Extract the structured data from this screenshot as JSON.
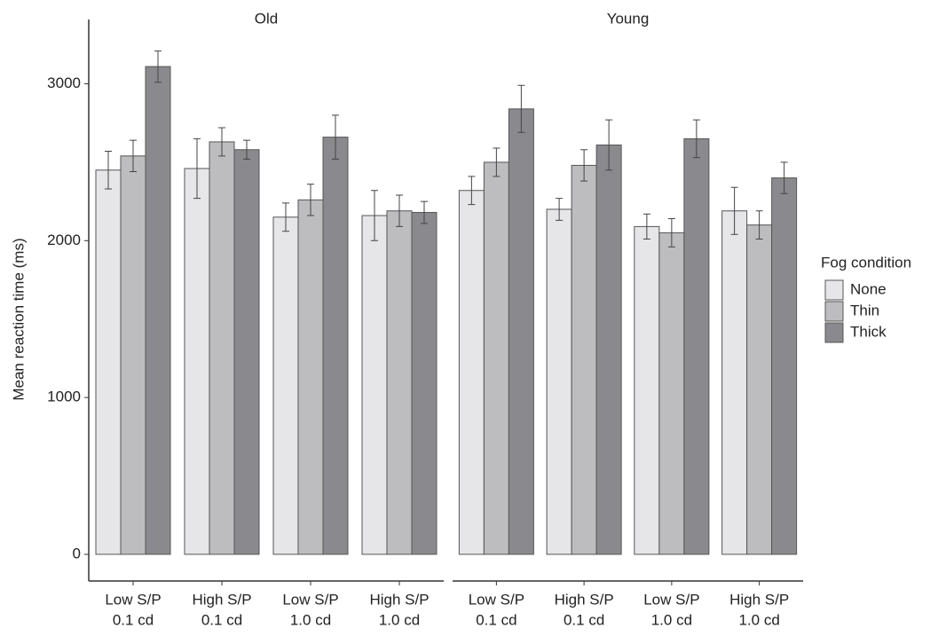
{
  "chart_data": {
    "type": "bar",
    "y_label": "Mean reaction time (ms)",
    "legend_title": "Fog condition",
    "categories": [
      [
        "Low S/P",
        "0.1 cd"
      ],
      [
        "High S/P",
        "0.1 cd"
      ],
      [
        "Low S/P",
        "1.0 cd"
      ],
      [
        "High S/P",
        "1.0 cd"
      ]
    ],
    "ylim": [
      -170,
      3410
    ],
    "yticks": [
      0,
      1000,
      2000,
      3000
    ],
    "series": [
      {
        "name": "None",
        "color": "#e6e6e8"
      },
      {
        "name": "Thin",
        "color": "#bdbdc0"
      },
      {
        "name": "Thick",
        "color": "#8a8a8e"
      }
    ],
    "panels": [
      {
        "title": "Old",
        "series": [
          {
            "values": [
              2450,
              2460,
              2150,
              2160
            ],
            "errors": [
              120,
              190,
              90,
              160
            ]
          },
          {
            "values": [
              2540,
              2630,
              2260,
              2190
            ],
            "errors": [
              100,
              90,
              100,
              100
            ]
          },
          {
            "values": [
              3110,
              2580,
              2660,
              2180
            ],
            "errors": [
              100,
              60,
              140,
              70
            ]
          }
        ]
      },
      {
        "title": "Young",
        "series": [
          {
            "values": [
              2320,
              2200,
              2090,
              2190
            ],
            "errors": [
              90,
              70,
              80,
              150
            ]
          },
          {
            "values": [
              2500,
              2480,
              2050,
              2100
            ],
            "errors": [
              90,
              100,
              90,
              90
            ]
          },
          {
            "values": [
              2840,
              2610,
              2650,
              2400
            ],
            "errors": [
              150,
              160,
              120,
              100
            ]
          }
        ]
      }
    ]
  }
}
